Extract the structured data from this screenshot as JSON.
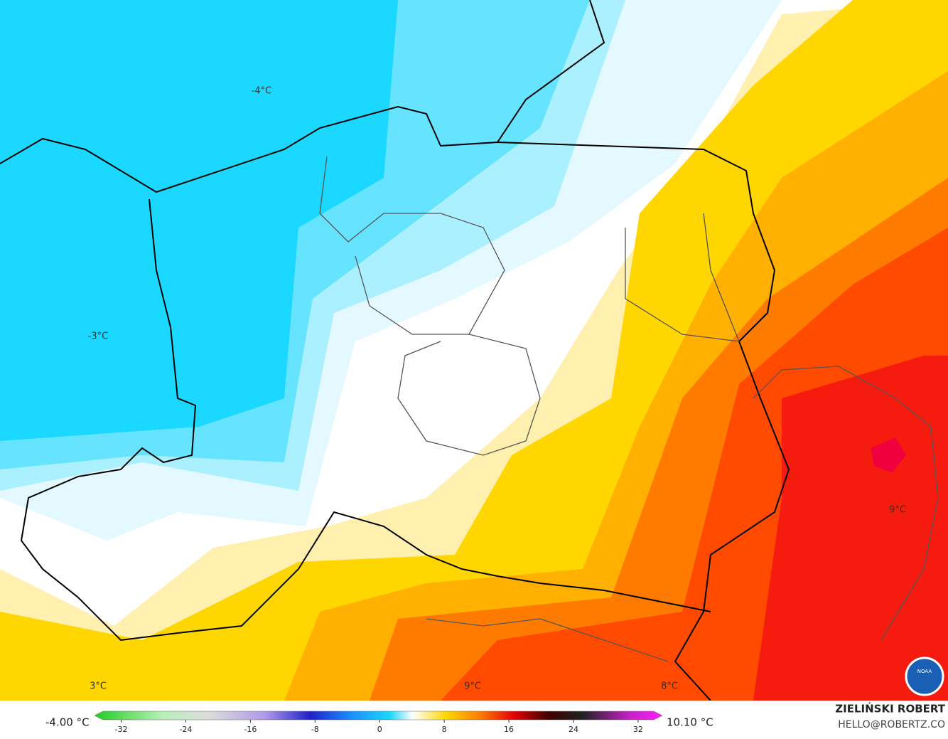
{
  "map": {
    "labels": [
      "-4°C",
      "-3°C",
      "3°C",
      "9°C",
      "8°C",
      "9°C"
    ]
  },
  "colorbar": {
    "min_label": "-4.00 °C",
    "max_label": "10.10 °C",
    "lim": [
      -35.3,
      35
    ],
    "ticks": [
      -32,
      -24,
      -16,
      -8,
      0,
      8,
      16,
      24,
      32
    ]
  },
  "credit": {
    "name": "ZIELIŃSKI ROBERT",
    "email": "HELLO@ROBERTZ.CO"
  },
  "logo": "NOAA"
}
